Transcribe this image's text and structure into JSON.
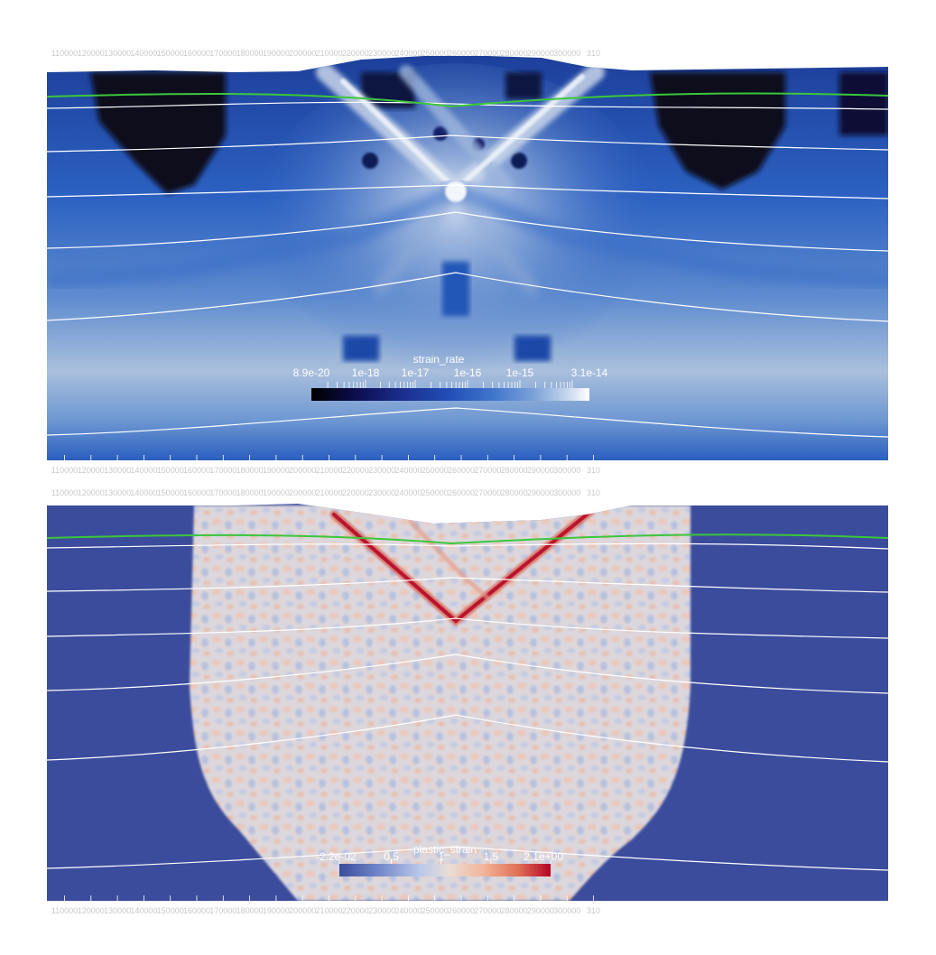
{
  "panels": [
    {
      "id": "strain-rate-panel",
      "field": "strain_rate",
      "colorbar": {
        "title": "strain_rate",
        "scale": "log",
        "min_label": "8.9e-20",
        "max_label": "3.1e-14",
        "labels": [
          "8.9e-20",
          "1e-18",
          "1e-17",
          "1e-16",
          "1e-15",
          "3.1e-14"
        ],
        "colors": [
          "#000000",
          "#0c0c4a",
          "#1a2d8c",
          "#2250b8",
          "#3f74cc",
          "#7da2d8",
          "#c5d6ec",
          "#ffffff"
        ]
      },
      "x_ticks_top": [
        "110000",
        "120000",
        "130000",
        "140000",
        "150000",
        "160000",
        "170000",
        "180000",
        "190000",
        "200000",
        "210000",
        "220000",
        "230000",
        "240000",
        "250000",
        "260000",
        "270000",
        "280000",
        "290000",
        "300000",
        "310"
      ],
      "x_ticks_bottom": [
        "110000",
        "120000",
        "130000",
        "140000",
        "150000",
        "160000",
        "170000",
        "180000",
        "190000",
        "200000",
        "210000",
        "220000",
        "230000",
        "240000",
        "250000",
        "260000",
        "270000",
        "280000",
        "290000",
        "300000",
        "310"
      ]
    },
    {
      "id": "plastic-strain-panel",
      "field": "plastic_strain",
      "colorbar": {
        "title": "plastic_strain",
        "scale": "linear",
        "min_label": "-2.2e-02",
        "max_label": "2.1e+00",
        "labels": [
          "-2.2e-02",
          "0.5",
          "1",
          "1.5",
          "2.1e+00"
        ],
        "colors": [
          "#3b4c9c",
          "#6f85c9",
          "#b8c8e8",
          "#e8ddd6",
          "#f2b59a",
          "#df6e55",
          "#b40426"
        ]
      },
      "x_ticks_top": [
        "110000",
        "120000",
        "130000",
        "140000",
        "150000",
        "160000",
        "170000",
        "180000",
        "190000",
        "200000",
        "210000",
        "220000",
        "230000",
        "240000",
        "250000",
        "260000",
        "270000",
        "280000",
        "290000",
        "300000",
        "310"
      ],
      "x_ticks_bottom": [
        "110000",
        "120000",
        "130000",
        "140000",
        "150000",
        "160000",
        "170000",
        "180000",
        "190000",
        "200000",
        "210000",
        "220000",
        "230000",
        "240000",
        "250000",
        "260000",
        "270000",
        "280000",
        "290000",
        "300000",
        "310"
      ]
    }
  ],
  "colors": {
    "background": "#ffffff",
    "contour_line": "#ffffff",
    "topography_line": "#3cc63c",
    "axis_text": "#c9c9c9",
    "sr_dark": "#07071f",
    "sr_mid": "#2a5fbf",
    "sr_light": "#a8bfdc",
    "ps_base": "#3b4c9c",
    "ps_zone": "#d9d6dc",
    "ps_shear": "#b40426"
  }
}
